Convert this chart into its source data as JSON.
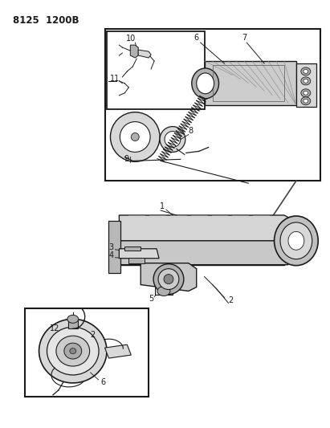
{
  "title": "8125 1200B",
  "bg_color": "#ffffff",
  "line_color": "#1a1a1a",
  "gray_light": "#d8d8d8",
  "gray_mid": "#b0b0b0",
  "gray_dark": "#888888",
  "title_fontsize": 8.5,
  "label_fontsize": 7,
  "fig_width": 4.11,
  "fig_height": 5.33,
  "dpi": 100
}
